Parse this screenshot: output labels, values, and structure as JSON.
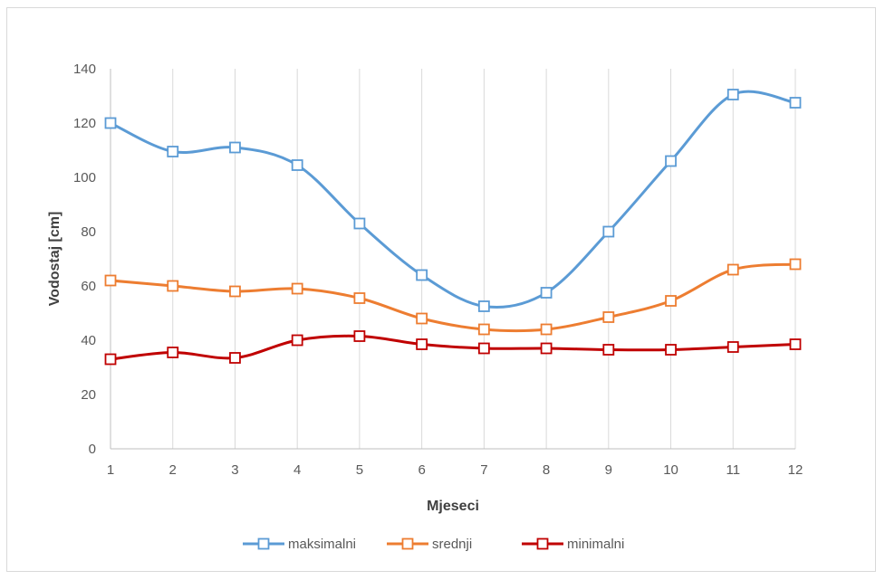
{
  "chart_data": {
    "type": "line",
    "xlabel": "Mjeseci",
    "ylabel": "Vodostaj [cm]",
    "x": [
      1,
      2,
      3,
      4,
      5,
      6,
      7,
      8,
      9,
      10,
      11,
      12
    ],
    "ylim": [
      0,
      140
    ],
    "yticks": [
      0,
      20,
      40,
      60,
      80,
      100,
      120,
      140
    ],
    "grid": "vertical",
    "smooth": true,
    "legend": "bottom",
    "series": [
      {
        "name": "maksimalni",
        "color": "#5b9bd5",
        "values": [
          120,
          109.5,
          111,
          104.5,
          83,
          64,
          52.5,
          57.5,
          80,
          106,
          130.5,
          127.5
        ]
      },
      {
        "name": "srednji",
        "color": "#ed7d31",
        "values": [
          62,
          60,
          58,
          59,
          55.5,
          48,
          44,
          44,
          48.5,
          54.5,
          66,
          68
        ]
      },
      {
        "name": "minimalni",
        "color": "#c00000",
        "values": [
          33,
          35.5,
          33.5,
          40,
          41.5,
          38.5,
          37,
          37,
          36.5,
          36.5,
          37.5,
          38.5
        ]
      }
    ]
  }
}
